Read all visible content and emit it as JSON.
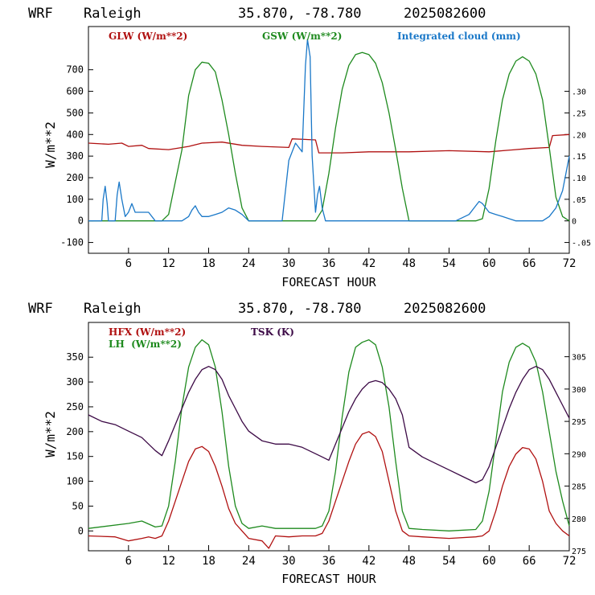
{
  "panels": [
    {
      "header": {
        "model": "WRF",
        "location": "Raleigh",
        "coords": "35.870, -78.780",
        "run": "2025082600"
      },
      "xlabel": "FORECAST HOUR",
      "ylabel": "W/m**2",
      "legend": [
        {
          "label": "GLW (W/m**2)",
          "color": "#b01010"
        },
        {
          "label": "GSW (W/m**2)",
          "color": "#1e8a1e"
        },
        {
          "label": "Integrated cloud (mm)",
          "color": "#1a78c8"
        }
      ],
      "left_ticks": [
        "-100",
        "0",
        "100",
        "200",
        "300",
        "400",
        "500",
        "600",
        "700"
      ],
      "right_ticks": [
        "-.05",
        "0",
        ".05",
        ".10",
        ".15",
        ".20",
        ".25",
        ".30"
      ],
      "x_ticks": [
        "6",
        "12",
        "18",
        "24",
        "30",
        "36",
        "42",
        "48",
        "54",
        "60",
        "66",
        "72"
      ]
    },
    {
      "header": {
        "model": "WRF",
        "location": "Raleigh",
        "coords": "35.870, -78.780",
        "run": "2025082600"
      },
      "xlabel": "FORECAST HOUR",
      "ylabel": "W/m**2",
      "legend": [
        {
          "label": "HFX (W/m**2)",
          "color": "#b01010"
        },
        {
          "label": "LH  (W/m**2)",
          "color": "#1e8a1e"
        },
        {
          "label": "TSK (K)",
          "color": "#3c0a46"
        }
      ],
      "left_ticks": [
        "0",
        "50",
        "100",
        "150",
        "200",
        "250",
        "300",
        "350"
      ],
      "right_ticks": [
        "275",
        "280",
        "285",
        "290",
        "295",
        "300",
        "305"
      ],
      "x_ticks": [
        "6",
        "12",
        "18",
        "24",
        "30",
        "36",
        "42",
        "48",
        "54",
        "60",
        "66",
        "72"
      ]
    }
  ],
  "chart_data": [
    {
      "type": "line",
      "xlim": [
        0,
        72
      ],
      "ylim": [
        -150,
        900
      ],
      "y2lim": [
        -0.075,
        0.45
      ],
      "series": [
        {
          "name": "GLW (W/m**2)",
          "axis": "left",
          "color": "#b01010",
          "x": [
            0,
            3,
            5,
            6,
            8,
            9,
            12,
            15,
            17,
            20,
            23,
            26,
            30,
            30.5,
            34,
            34.5,
            38,
            42,
            48,
            54,
            60,
            66,
            69,
            69.5,
            72
          ],
          "y": [
            360,
            355,
            360,
            345,
            350,
            335,
            330,
            345,
            360,
            365,
            350,
            345,
            340,
            380,
            375,
            315,
            315,
            320,
            320,
            325,
            320,
            335,
            340,
            395,
            400
          ]
        },
        {
          "name": "GSW (W/m**2)",
          "axis": "left",
          "color": "#1e8a1e",
          "x": [
            0,
            11,
            12,
            14,
            15,
            16,
            17,
            18,
            19,
            20,
            21,
            22,
            23,
            24,
            34,
            35,
            36,
            37,
            38,
            39,
            40,
            41,
            42,
            43,
            44,
            45,
            46,
            47,
            48,
            58,
            59,
            60,
            61,
            62,
            63,
            64,
            65,
            66,
            67,
            68,
            69,
            70,
            71,
            72
          ],
          "y": [
            0,
            0,
            30,
            330,
            580,
            700,
            735,
            730,
            690,
            560,
            400,
            220,
            60,
            0,
            0,
            50,
            220,
            430,
            610,
            720,
            770,
            780,
            770,
            730,
            640,
            500,
            330,
            150,
            0,
            0,
            10,
            150,
            370,
            560,
            680,
            740,
            760,
            740,
            680,
            560,
            340,
            110,
            20,
            0
          ]
        },
        {
          "name": "Integrated cloud (mm)",
          "axis": "right",
          "color": "#1a78c8",
          "x": [
            0,
            2,
            2.2,
            2.5,
            2.8,
            3,
            4,
            4.3,
            4.6,
            5,
            5.5,
            6,
            6.5,
            7,
            8,
            9,
            10,
            12,
            14,
            15,
            15.5,
            16,
            16.5,
            17,
            18,
            19,
            20,
            21,
            22,
            23,
            24,
            29,
            30,
            31,
            32,
            32.5,
            32.8,
            33.2,
            33.5,
            34,
            34.3,
            34.6,
            35,
            35.5,
            36,
            55,
            57,
            58,
            58.5,
            59,
            59.5,
            60,
            61,
            62,
            64,
            68,
            69,
            70,
            71,
            72
          ],
          "y": [
            0,
            0,
            0.05,
            0.08,
            0.04,
            0,
            0,
            0.06,
            0.09,
            0.05,
            0.01,
            0.02,
            0.04,
            0.02,
            0.02,
            0.02,
            0,
            0,
            0,
            0.01,
            0.025,
            0.035,
            0.02,
            0.01,
            0.01,
            0.015,
            0.02,
            0.03,
            0.025,
            0.015,
            0,
            0,
            0.14,
            0.18,
            0.16,
            0.36,
            0.42,
            0.38,
            0.15,
            0.02,
            0.06,
            0.08,
            0.03,
            0,
            0,
            0,
            0.015,
            0.035,
            0.045,
            0.04,
            0.03,
            0.02,
            0.015,
            0.01,
            0,
            0,
            0.01,
            0.03,
            0.07,
            0.15
          ]
        }
      ]
    },
    {
      "type": "line",
      "xlim": [
        0,
        72
      ],
      "ylim": [
        -40,
        420
      ],
      "y2lim": [
        275,
        310.3
      ],
      "series": [
        {
          "name": "HFX (W/m**2)",
          "axis": "left",
          "color": "#b01010",
          "x": [
            0,
            4,
            6,
            8,
            9,
            10,
            11,
            12,
            13,
            14,
            15,
            16,
            17,
            18,
            19,
            20,
            21,
            22,
            23,
            24,
            26,
            27,
            28,
            30,
            32,
            34,
            35,
            36,
            37,
            38,
            39,
            40,
            41,
            42,
            43,
            44,
            45,
            46,
            47,
            48,
            50,
            54,
            58,
            59,
            60,
            61,
            62,
            63,
            64,
            65,
            66,
            67,
            68,
            69,
            70,
            71,
            72
          ],
          "y": [
            -10,
            -12,
            -20,
            -15,
            -12,
            -15,
            -10,
            20,
            60,
            100,
            140,
            165,
            170,
            160,
            130,
            90,
            45,
            15,
            0,
            -15,
            -20,
            -35,
            -10,
            -12,
            -10,
            -10,
            -5,
            20,
            60,
            100,
            140,
            175,
            195,
            200,
            190,
            160,
            100,
            40,
            0,
            -10,
            -12,
            -15,
            -12,
            -10,
            0,
            40,
            90,
            130,
            155,
            168,
            165,
            145,
            100,
            40,
            15,
            0,
            -10
          ]
        },
        {
          "name": "LH  (W/m**2)",
          "axis": "left",
          "color": "#1e8a1e",
          "x": [
            0,
            6,
            8,
            10,
            11,
            12,
            13,
            14,
            15,
            16,
            17,
            18,
            19,
            20,
            21,
            22,
            23,
            24,
            26,
            28,
            30,
            34,
            35,
            36,
            37,
            38,
            39,
            40,
            41,
            42,
            43,
            44,
            45,
            46,
            47,
            48,
            50,
            54,
            58,
            59,
            60,
            61,
            62,
            63,
            64,
            65,
            66,
            67,
            68,
            69,
            70,
            71,
            72
          ],
          "y": [
            5,
            15,
            20,
            8,
            10,
            50,
            140,
            250,
            330,
            370,
            385,
            375,
            330,
            240,
            130,
            50,
            15,
            5,
            10,
            5,
            5,
            5,
            10,
            40,
            120,
            230,
            320,
            370,
            380,
            385,
            375,
            330,
            250,
            140,
            40,
            5,
            3,
            0,
            3,
            20,
            80,
            180,
            280,
            340,
            370,
            378,
            370,
            340,
            280,
            200,
            120,
            60,
            10
          ]
        },
        {
          "name": "TSK (K)",
          "axis": "right",
          "color": "#3c0a46",
          "x": [
            0,
            2,
            4,
            6,
            8,
            9,
            10,
            11,
            12,
            13,
            14,
            15,
            16,
            17,
            18,
            19,
            20,
            21,
            22,
            23,
            24,
            26,
            28,
            30,
            32,
            34,
            35,
            36,
            37,
            38,
            39,
            40,
            41,
            42,
            43,
            44,
            45,
            46,
            47,
            48,
            50,
            52,
            54,
            56,
            58,
            59,
            60,
            61,
            62,
            63,
            64,
            65,
            66,
            67,
            68,
            69,
            70,
            71,
            72
          ],
          "y": [
            296,
            295,
            294.5,
            293.5,
            292.5,
            291.5,
            290.5,
            289.7,
            292,
            294.5,
            297,
            299.5,
            301.5,
            303,
            303.5,
            303,
            301.5,
            299,
            297,
            295,
            293.5,
            292,
            291.5,
            291.5,
            291,
            290,
            289.5,
            289,
            291.5,
            294,
            296.5,
            298.5,
            300,
            301,
            301.3,
            301,
            300,
            298.5,
            296,
            291,
            289.5,
            288.5,
            287.5,
            286.5,
            285.5,
            286,
            288,
            291,
            294,
            297,
            299.5,
            301.5,
            303,
            303.5,
            303,
            301.5,
            299.5,
            297.5,
            295.5
          ]
        }
      ]
    }
  ]
}
